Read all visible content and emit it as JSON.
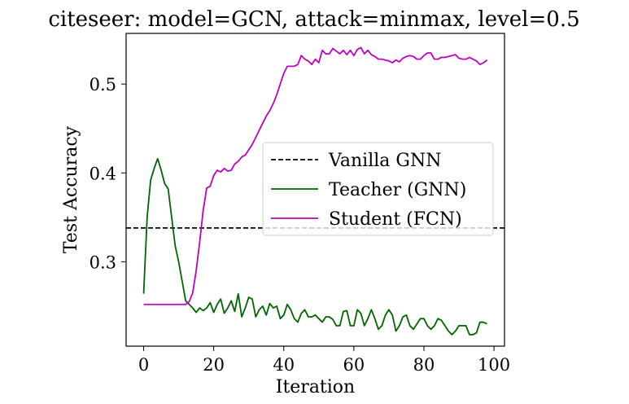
{
  "chart_data": {
    "type": "line",
    "title": "citeseer: model=GCN, attack=minmax, level=0.5",
    "xlabel": "Iteration",
    "ylabel": "Test Accuracy",
    "xlim": [
      -5,
      103
    ],
    "ylim": [
      0.205,
      0.557
    ],
    "xticks": [
      0,
      20,
      40,
      60,
      80,
      100
    ],
    "yticks": [
      0.3,
      0.4,
      0.5
    ],
    "ytick_labels": [
      "0.3",
      "0.4",
      "0.5"
    ],
    "grid": false,
    "legend_position": "center-right",
    "hline": {
      "name": "Vanilla GNN",
      "y": 0.338,
      "color": "#000000",
      "style": "dashed"
    },
    "series": [
      {
        "name": "Teacher (GNN)",
        "color": "#006400",
        "x": [
          0,
          1,
          2,
          3,
          4,
          5,
          6,
          7,
          8,
          9,
          10,
          11,
          12,
          13,
          14,
          15,
          16,
          17,
          18,
          19,
          20,
          21,
          22,
          23,
          24,
          25,
          26,
          27,
          28,
          29,
          30,
          31,
          32,
          33,
          34,
          35,
          36,
          37,
          38,
          39,
          40,
          41,
          42,
          43,
          44,
          45,
          46,
          47,
          48,
          49,
          50,
          51,
          52,
          53,
          54,
          55,
          56,
          57,
          58,
          59,
          60,
          61,
          62,
          63,
          64,
          65,
          66,
          67,
          68,
          69,
          70,
          71,
          72,
          73,
          74,
          75,
          76,
          77,
          78,
          79,
          80,
          81,
          82,
          83,
          84,
          85,
          86,
          87,
          88,
          89,
          90,
          91,
          92,
          93,
          94,
          95,
          96,
          97,
          98
        ],
        "values": [
          0.264,
          0.35,
          0.392,
          0.405,
          0.416,
          0.403,
          0.388,
          0.382,
          0.35,
          0.318,
          0.3,
          0.278,
          0.256,
          0.252,
          0.248,
          0.243,
          0.248,
          0.245,
          0.248,
          0.254,
          0.243,
          0.252,
          0.258,
          0.242,
          0.248,
          0.256,
          0.244,
          0.264,
          0.238,
          0.248,
          0.26,
          0.258,
          0.238,
          0.246,
          0.25,
          0.24,
          0.253,
          0.248,
          0.25,
          0.236,
          0.24,
          0.252,
          0.246,
          0.236,
          0.232,
          0.242,
          0.246,
          0.238,
          0.238,
          0.24,
          0.236,
          0.232,
          0.238,
          0.238,
          0.235,
          0.228,
          0.228,
          0.244,
          0.245,
          0.228,
          0.228,
          0.246,
          0.242,
          0.228,
          0.236,
          0.246,
          0.236,
          0.224,
          0.228,
          0.24,
          0.246,
          0.24,
          0.222,
          0.228,
          0.238,
          0.24,
          0.228,
          0.224,
          0.23,
          0.236,
          0.236,
          0.228,
          0.224,
          0.228,
          0.236,
          0.234,
          0.228,
          0.222,
          0.218,
          0.222,
          0.228,
          0.228,
          0.228,
          0.218,
          0.218,
          0.22,
          0.232,
          0.232,
          0.23
        ]
      },
      {
        "name": "Student (FCN)",
        "color": "#bf00bf",
        "x": [
          0,
          1,
          2,
          3,
          4,
          5,
          6,
          7,
          8,
          9,
          10,
          11,
          12,
          13,
          14,
          15,
          16,
          17,
          18,
          19,
          20,
          21,
          22,
          23,
          24,
          25,
          26,
          27,
          28,
          29,
          30,
          31,
          32,
          33,
          34,
          35,
          36,
          37,
          38,
          39,
          40,
          41,
          42,
          43,
          44,
          45,
          46,
          47,
          48,
          49,
          50,
          51,
          52,
          53,
          54,
          55,
          56,
          57,
          58,
          59,
          60,
          61,
          62,
          63,
          64,
          65,
          66,
          67,
          68,
          69,
          70,
          71,
          72,
          73,
          74,
          75,
          76,
          77,
          78,
          79,
          80,
          81,
          82,
          83,
          84,
          85,
          86,
          87,
          88,
          89,
          90,
          91,
          92,
          93,
          94,
          95,
          96,
          97,
          98
        ],
        "values": [
          0.252,
          0.252,
          0.252,
          0.252,
          0.252,
          0.252,
          0.252,
          0.252,
          0.252,
          0.252,
          0.252,
          0.252,
          0.252,
          0.255,
          0.265,
          0.29,
          0.322,
          0.358,
          0.383,
          0.385,
          0.397,
          0.403,
          0.401,
          0.405,
          0.402,
          0.403,
          0.41,
          0.413,
          0.418,
          0.42,
          0.426,
          0.432,
          0.44,
          0.448,
          0.456,
          0.464,
          0.47,
          0.478,
          0.488,
          0.5,
          0.512,
          0.52,
          0.52,
          0.52,
          0.522,
          0.532,
          0.528,
          0.526,
          0.522,
          0.528,
          0.524,
          0.538,
          0.534,
          0.534,
          0.54,
          0.537,
          0.534,
          0.538,
          0.533,
          0.538,
          0.532,
          0.539,
          0.541,
          0.534,
          0.538,
          0.533,
          0.531,
          0.528,
          0.528,
          0.527,
          0.526,
          0.524,
          0.527,
          0.525,
          0.529,
          0.531,
          0.532,
          0.531,
          0.528,
          0.528,
          0.532,
          0.535,
          0.535,
          0.528,
          0.528,
          0.53,
          0.53,
          0.531,
          0.532,
          0.533,
          0.529,
          0.528,
          0.528,
          0.53,
          0.528,
          0.526,
          0.522,
          0.524,
          0.527
        ]
      }
    ]
  }
}
